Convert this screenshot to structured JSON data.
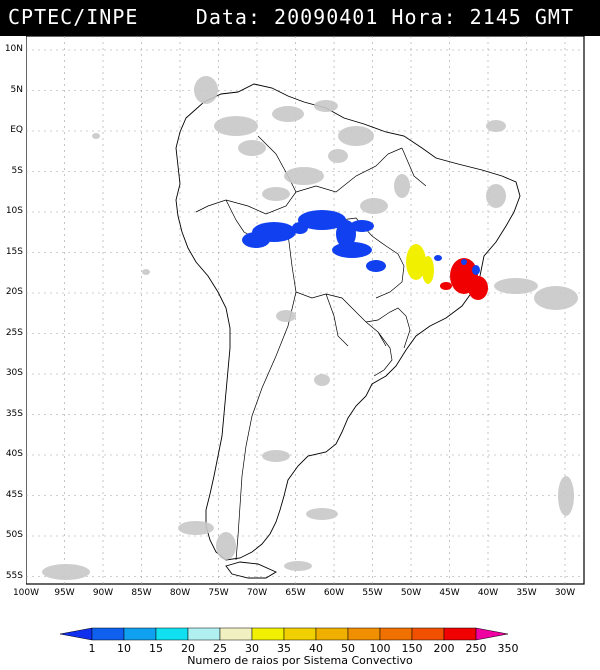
{
  "header": {
    "org": "CPTEC/INPE",
    "datetime": "Data: 20090401 Hora: 2145 GMT"
  },
  "lat_labels": [
    "10N",
    "5N",
    "EQ",
    "5S",
    "10S",
    "15S",
    "20S",
    "25S",
    "30S",
    "35S",
    "40S",
    "45S",
    "50S",
    "55S"
  ],
  "lon_labels": [
    "100W",
    "95W",
    "90W",
    "85W",
    "80W",
    "75W",
    "70W",
    "65W",
    "60W",
    "55W",
    "50W",
    "45W",
    "40W",
    "35W",
    "30W"
  ],
  "colorbar": {
    "labels": [
      "1",
      "10",
      "15",
      "20",
      "25",
      "30",
      "35",
      "40",
      "50",
      "100",
      "150",
      "200",
      "250",
      "350"
    ],
    "colors": [
      "#1030f0",
      "#1060f0",
      "#10a0f0",
      "#10e0f0",
      "#b0f0f0",
      "#f0f0c0",
      "#f0f000",
      "#f0d000",
      "#f0b000",
      "#f09000",
      "#f07000",
      "#f05000",
      "#f00000",
      "#f000a0"
    ],
    "caption": "Numero de raios por Sistema Convectivo"
  },
  "colors": {
    "land": "#ffffff",
    "clouds": "#c8c8c8",
    "grid": "#a0a0a0",
    "blue_systems": "#1040f0",
    "yellow_system": "#f0f000",
    "red_system": "#f00000"
  }
}
